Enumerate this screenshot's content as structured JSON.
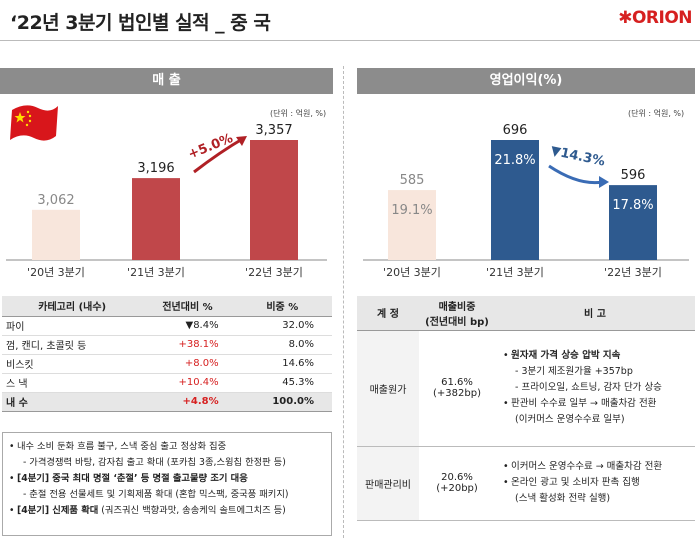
{
  "page": {
    "title": "‘22년 3분기 법인별 실적 _ 중 국",
    "logo": "ORION"
  },
  "sales": {
    "header": "매 출",
    "unit": "(단위 : 억원, %)",
    "growth_label": "+5.0%"
  },
  "operating": {
    "header": "영업이익(%)",
    "unit": "(단위 : 억원, %)",
    "growth_label": "▼14.3%"
  },
  "chart_data": [
    {
      "type": "bar",
      "title": "매 출",
      "categories": [
        "'20년 3분기",
        "'21년 3분기",
        "'22년 3분기"
      ],
      "values": [
        3062,
        3196,
        3357
      ],
      "value_labels": [
        "3,062",
        "3,196",
        "3,357"
      ],
      "annotation": "+5.0%",
      "colors": [
        "#f8e6dc",
        "#c0474a",
        "#c0474a"
      ]
    },
    {
      "type": "bar",
      "title": "영업이익(%)",
      "categories": [
        "'20년 3분기",
        "'21년 3분기",
        "'22년 3분기"
      ],
      "values": [
        585,
        696,
        596
      ],
      "margins": [
        "19.1%",
        "21.8%",
        "17.8%"
      ],
      "value_labels": [
        "585",
        "696",
        "596"
      ],
      "annotation": "▼14.3%",
      "colors": [
        "#f8e6dc",
        "#2e5a8f",
        "#2e5a8f"
      ]
    }
  ],
  "sales_table": {
    "headers": [
      "카테고리 (내수)",
      "전년대비 %",
      "비중 %"
    ],
    "rows": [
      {
        "cat": "파이",
        "yoy": "▼8.4%",
        "share": "32.0%"
      },
      {
        "cat": "껌, 캔디, 초콜릿 등",
        "yoy": "+38.1%",
        "share": "8.0%"
      },
      {
        "cat": "비스킷",
        "yoy": "+8.0%",
        "share": "14.6%"
      },
      {
        "cat": "스 낵",
        "yoy": "+10.4%",
        "share": "45.3%"
      }
    ],
    "total": {
      "cat": "내 수",
      "yoy": "+4.8%",
      "share": "100.0%"
    }
  },
  "notes": {
    "line1": "내수 소비 둔화 흐름 불구, 스낵 중심 출고 정상화 집중",
    "line2": "- 가격경쟁력 바탕, 감자칩 출고 확대 (포카칩 3종,스윙칩 한정판 등)",
    "line3_bold": "[4분기] 중국 최대 명절 ‘춘절’ 등 명절 출고물량 조기 대응",
    "line4": "- 춘절 전용 선물세트 및 기획제품 확대 (혼합 믹스팩, 중국풍 패키지)",
    "line5_bold": "[4분기] 신제품 확대",
    "line5_rest": " (궈즈궈신 백향과맛, 송송케익 솔트에그치즈 등)"
  },
  "cost_table": {
    "headers": [
      "계 정",
      "매출비중\n(전년대비 bp)",
      "비 고"
    ],
    "row1": {
      "account": "매출원가",
      "ratio": "61.6%",
      "change": "(+382bp)",
      "note1_bold": "원자재 가격 상승 압박 지속",
      "note2": "- 3분기 제조원가율 +357bp",
      "note3": "- 프라이오일, 쇼트닝, 감자 단가 상승",
      "note4": "판관비 수수료 일부 → 매출차감 전환",
      "note5": "(이커머스 운영수수료 일부)"
    },
    "row2": {
      "account": "판매관리비",
      "ratio": "20.6%",
      "change": "(+20bp)",
      "note1": "이커머스 운영수수료 → 매출차감 전환",
      "note2": "온라인 광고 및 소비자 판촉 집행",
      "note3": "(스낵 활성화 전략 실행)"
    }
  }
}
